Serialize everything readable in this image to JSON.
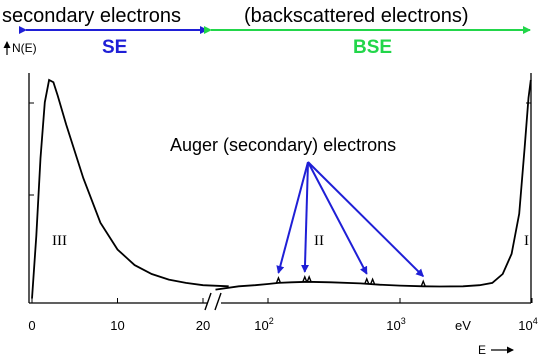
{
  "chart_data": {
    "type": "line",
    "title": "",
    "xlabel": "E",
    "ylabel": "N(E)",
    "x_axis": {
      "segments": [
        {
          "scale": "linear",
          "range": [
            0,
            23
          ],
          "ticks": [
            {
              "value": 0,
              "label": "0"
            },
            {
              "value": 10,
              "label": "10"
            },
            {
              "value": 20,
              "label": "20"
            }
          ]
        },
        {
          "scale": "log",
          "range": [
            40,
            10000
          ],
          "ticks": [
            {
              "value": 100,
              "base": "10",
              "exp": "2"
            },
            {
              "value": 1000,
              "base": "10",
              "exp": "3"
            },
            {
              "value": 10000,
              "base": "10",
              "exp": "4"
            }
          ]
        }
      ],
      "unit_label": "eV",
      "axis_break": true
    },
    "ylim": [
      0,
      1
    ],
    "series": [
      {
        "segments": [
          [
            [
              0,
              0.02
            ],
            [
              0.5,
              0.3
            ],
            [
              1,
              0.65
            ],
            [
              1.5,
              0.9
            ],
            [
              2,
              1.0
            ],
            [
              2.5,
              0.99
            ],
            [
              3,
              0.93
            ],
            [
              4,
              0.8
            ],
            [
              6,
              0.56
            ],
            [
              8,
              0.36
            ],
            [
              10,
              0.24
            ],
            [
              12,
              0.17
            ],
            [
              14,
              0.13
            ],
            [
              16,
              0.105
            ],
            [
              18,
              0.09
            ],
            [
              20,
              0.08
            ],
            [
              23,
              0.075
            ]
          ],
          [
            [
              40,
              0.06
            ],
            [
              60,
              0.075
            ],
            [
              80,
              0.08
            ],
            [
              100,
              0.085
            ],
            [
              120,
              0.09
            ],
            [
              150,
              0.093
            ],
            [
              200,
              0.095
            ],
            [
              300,
              0.093
            ],
            [
              500,
              0.088
            ],
            [
              700,
              0.082
            ],
            [
              1000,
              0.078
            ],
            [
              1500,
              0.075
            ],
            [
              2000,
              0.074
            ],
            [
              3000,
              0.075
            ],
            [
              4000,
              0.08
            ],
            [
              5000,
              0.09
            ],
            [
              6000,
              0.13
            ],
            [
              7000,
              0.22
            ],
            [
              8000,
              0.4
            ],
            [
              8800,
              0.7
            ],
            [
              9400,
              0.92
            ],
            [
              9800,
              1.0
            ]
          ]
        ],
        "peaks": [
          120,
          190,
          205,
          560,
          620,
          1500
        ]
      }
    ],
    "regions": [
      {
        "label": "secondary electrons",
        "abbr": "SE",
        "color": "#1f1fd6",
        "x_range": [
          0,
          23
        ]
      },
      {
        "label": "(backscattered electrons)",
        "abbr": "BSE",
        "color": "#22d64a",
        "x_range": [
          23,
          10000
        ]
      }
    ],
    "annotations": {
      "auger_label": "Auger (secondary) electrons",
      "auger_color": "#1f1fd6",
      "auger_targets": [
        120,
        190,
        560,
        1500
      ],
      "region_numerals": [
        "III",
        "II",
        "I"
      ]
    }
  }
}
